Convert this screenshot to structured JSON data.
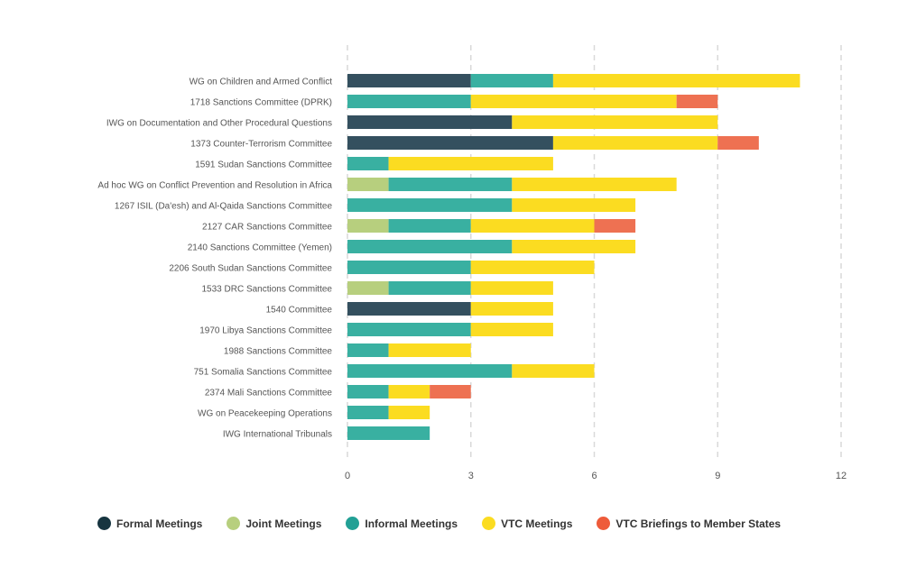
{
  "chart_data": {
    "type": "bar",
    "orientation": "horizontal",
    "stacked": true,
    "categories": [
      "WG on Children and Armed Conflict",
      "1718 Sanctions Committee (DPRK)",
      "IWG on Documentation and Other Procedural Questions",
      "1373 Counter-Terrorism Committee",
      "1591 Sudan Sanctions Committee",
      "Ad hoc WG on Conflict Prevention and Resolution in Africa",
      "1267 ISIL (Da'esh) and Al-Qaida Sanctions Committee",
      "2127 CAR Sanctions Committee",
      "2140 Sanctions Committee (Yemen)",
      "2206 South Sudan Sanctions Committee",
      "1533 DRC Sanctions Committee",
      "1540 Committee",
      "1970 Libya Sanctions Committee",
      "1988 Sanctions Committee",
      "751 Somalia Sanctions Committee",
      "2374 Mali Sanctions Committee",
      "WG on Peacekeeping Operations",
      "IWG International Tribunals"
    ],
    "series": [
      {
        "name": "Formal Meetings",
        "color": "#34505f",
        "values": [
          3,
          0,
          4,
          5,
          0,
          0,
          0,
          0,
          0,
          0,
          0,
          3,
          0,
          0,
          0,
          0,
          0,
          0
        ]
      },
      {
        "name": "Joint Meetings",
        "color": "#b7cf7e",
        "values": [
          0,
          0,
          0,
          0,
          0,
          1,
          0,
          1,
          0,
          0,
          1,
          0,
          0,
          0,
          0,
          0,
          0,
          0
        ]
      },
      {
        "name": "Informal Meetings",
        "color": "#39b0a1",
        "values": [
          2,
          3,
          0,
          0,
          1,
          3,
          4,
          2,
          4,
          3,
          2,
          0,
          3,
          1,
          4,
          1,
          1,
          2
        ]
      },
      {
        "name": "VTC Meetings",
        "color": "#fbdc21",
        "values": [
          6,
          5,
          5,
          4,
          4,
          4,
          3,
          3,
          3,
          3,
          2,
          2,
          2,
          2,
          2,
          1,
          1,
          0
        ]
      },
      {
        "name": "VTC Briefings to Member States",
        "color": "#ee7152",
        "values": [
          0,
          1,
          0,
          1,
          0,
          0,
          0,
          1,
          0,
          0,
          0,
          0,
          0,
          0,
          0,
          1,
          0,
          0
        ]
      }
    ],
    "xlim": [
      0,
      12
    ],
    "xticks": [
      "0",
      "3",
      "6",
      "9",
      "12"
    ],
    "grid": "vertical-dashed",
    "legend": {
      "position": "bottom-left",
      "items": [
        {
          "label": "Formal Meetings",
          "color": "#173540"
        },
        {
          "label": "Joint Meetings",
          "color": "#b7cf7e"
        },
        {
          "label": "Informal Meetings",
          "color": "#22a095"
        },
        {
          "label": "VTC Meetings",
          "color": "#fbdc21"
        },
        {
          "label": "VTC Briefings to Member States",
          "color": "#ee5b3a"
        }
      ]
    }
  }
}
